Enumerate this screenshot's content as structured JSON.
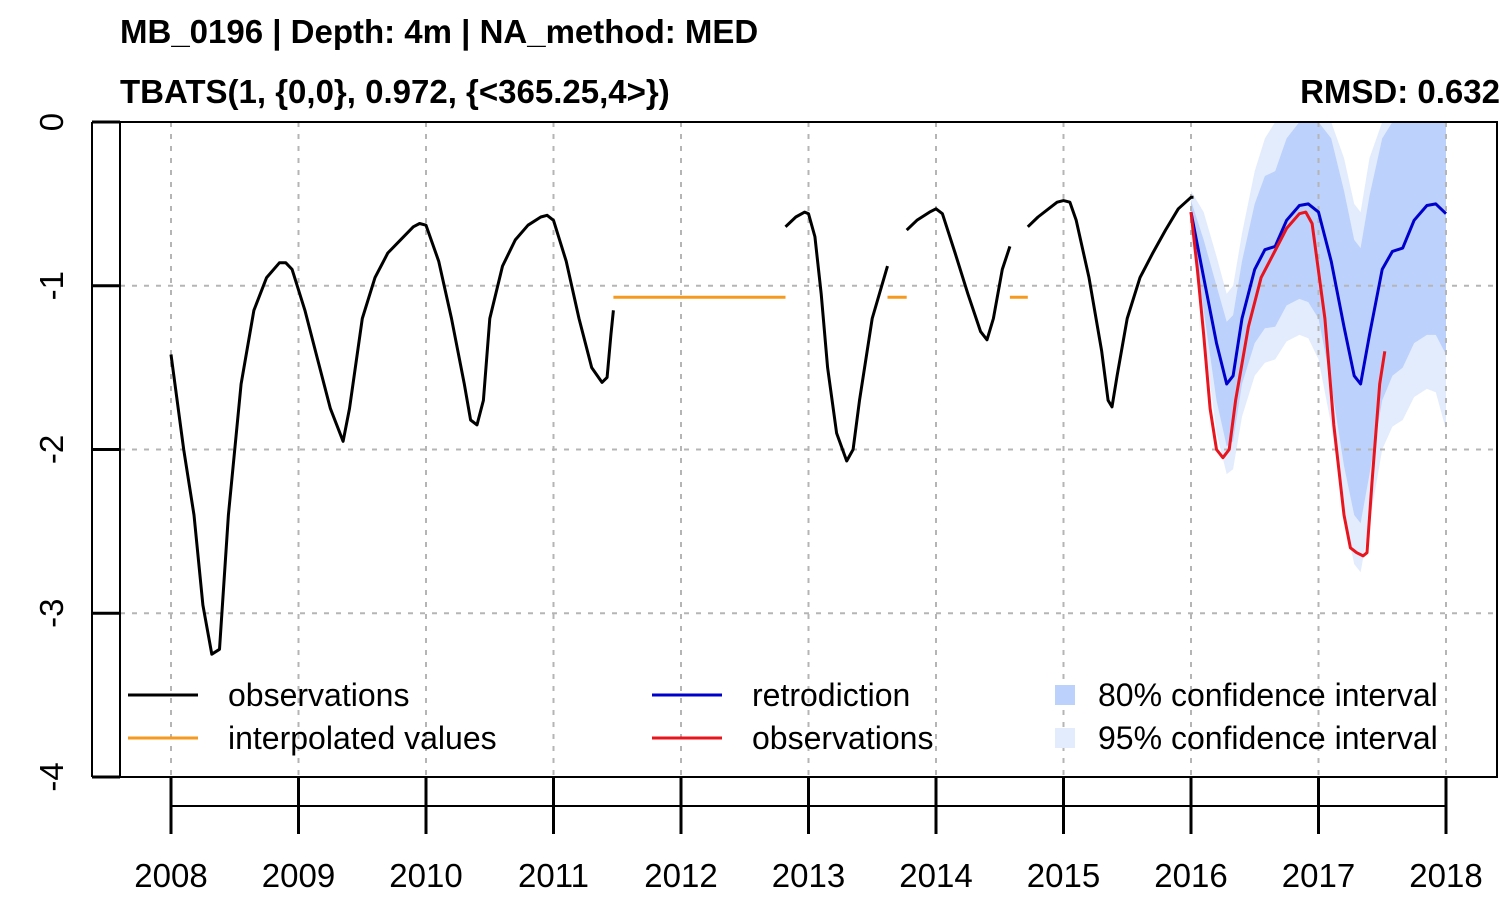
{
  "chart_data": {
    "type": "line",
    "title": "MB_0196 | Depth: 4m | NA_method: MED",
    "subtitle": "TBATS(1, {0,0}, 0.972, {<365.25,4>})",
    "rmsd_label": "RMSD: 0.632",
    "xlabel": "",
    "ylabel": "",
    "xlim": [
      2007.6,
      2018.4
    ],
    "ylim": [
      -4.0,
      0.0
    ],
    "grid": true,
    "x_ticks": [
      2008,
      2009,
      2010,
      2011,
      2012,
      2013,
      2014,
      2015,
      2016,
      2017,
      2018
    ],
    "x_tick_labels": [
      "2008",
      "2009",
      "2010",
      "2011",
      "2012",
      "2013",
      "2014",
      "2015",
      "2016",
      "2017",
      "2018"
    ],
    "y_ticks": [
      0,
      -1,
      -2,
      -3,
      -4
    ],
    "y_tick_labels": [
      "0",
      "-1",
      "-2",
      "-3",
      "-4"
    ],
    "colors": {
      "observations": "#000000",
      "interpolated": "#f59a1f",
      "retrodiction": "#0000cc",
      "observations_test": "#e8141e",
      "ci80": "#bcd1fb",
      "ci95": "#e3ecfd",
      "grid": "#b5b5b5"
    },
    "legend": {
      "placement": "bottom",
      "items": [
        {
          "label": "observations",
          "kind": "line",
          "color": "#000000"
        },
        {
          "label": "interpolated values",
          "kind": "line",
          "color": "#f59a1f"
        },
        {
          "label": "retrodiction",
          "kind": "line",
          "color": "#0000cc"
        },
        {
          "label": "observations",
          "kind": "line",
          "color": "#e8141e"
        },
        {
          "label": "80% confidence interval",
          "kind": "box",
          "color": "#bcd1fb"
        },
        {
          "label": "95% confidence interval",
          "kind": "box",
          "color": "#e3ecfd"
        }
      ]
    },
    "series": [
      {
        "name": "observations",
        "color": "#000000",
        "segments": [
          [
            [
              2008.0,
              -1.42
            ],
            [
              2008.1,
              -2.0
            ],
            [
              2008.18,
              -2.4
            ],
            [
              2008.25,
              -2.95
            ],
            [
              2008.32,
              -3.25
            ],
            [
              2008.38,
              -3.22
            ],
            [
              2008.45,
              -2.4
            ],
            [
              2008.55,
              -1.6
            ],
            [
              2008.65,
              -1.15
            ],
            [
              2008.75,
              -0.95
            ],
            [
              2008.85,
              -0.86
            ],
            [
              2008.9,
              -0.86
            ],
            [
              2008.95,
              -0.9
            ],
            [
              2009.05,
              -1.15
            ],
            [
              2009.15,
              -1.45
            ],
            [
              2009.25,
              -1.75
            ],
            [
              2009.35,
              -1.95
            ],
            [
              2009.4,
              -1.75
            ],
            [
              2009.5,
              -1.2
            ],
            [
              2009.6,
              -0.95
            ],
            [
              2009.7,
              -0.8
            ],
            [
              2009.8,
              -0.72
            ],
            [
              2009.9,
              -0.64
            ],
            [
              2009.95,
              -0.62
            ],
            [
              2010.0,
              -0.63
            ],
            [
              2010.1,
              -0.85
            ],
            [
              2010.2,
              -1.2
            ],
            [
              2010.3,
              -1.6
            ],
            [
              2010.35,
              -1.82
            ],
            [
              2010.4,
              -1.85
            ],
            [
              2010.45,
              -1.7
            ],
            [
              2010.5,
              -1.2
            ],
            [
              2010.6,
              -0.88
            ],
            [
              2010.7,
              -0.72
            ],
            [
              2010.8,
              -0.63
            ],
            [
              2010.9,
              -0.58
            ],
            [
              2010.95,
              -0.57
            ],
            [
              2011.0,
              -0.6
            ],
            [
              2011.1,
              -0.85
            ],
            [
              2011.2,
              -1.2
            ],
            [
              2011.3,
              -1.5
            ],
            [
              2011.38,
              -1.59
            ],
            [
              2011.42,
              -1.56
            ],
            [
              2011.45,
              -1.3
            ],
            [
              2011.47,
              -1.15
            ]
          ],
          [
            [
              2012.82,
              -0.64
            ],
            [
              2012.9,
              -0.58
            ],
            [
              2012.97,
              -0.55
            ],
            [
              2013.0,
              -0.56
            ],
            [
              2013.05,
              -0.7
            ],
            [
              2013.1,
              -1.05
            ],
            [
              2013.15,
              -1.5
            ],
            [
              2013.22,
              -1.9
            ],
            [
              2013.3,
              -2.07
            ],
            [
              2013.35,
              -2.0
            ],
            [
              2013.4,
              -1.7
            ],
            [
              2013.5,
              -1.2
            ],
            [
              2013.62,
              -0.88
            ]
          ],
          [
            [
              2013.77,
              -0.66
            ],
            [
              2013.85,
              -0.6
            ],
            [
              2013.95,
              -0.55
            ],
            [
              2014.0,
              -0.53
            ],
            [
              2014.05,
              -0.56
            ],
            [
              2014.15,
              -0.8
            ],
            [
              2014.25,
              -1.05
            ],
            [
              2014.35,
              -1.28
            ],
            [
              2014.4,
              -1.33
            ],
            [
              2014.45,
              -1.2
            ],
            [
              2014.52,
              -0.9
            ],
            [
              2014.58,
              -0.76
            ]
          ],
          [
            [
              2014.72,
              -0.64
            ],
            [
              2014.8,
              -0.58
            ],
            [
              2014.9,
              -0.52
            ],
            [
              2014.95,
              -0.49
            ],
            [
              2015.0,
              -0.48
            ],
            [
              2015.05,
              -0.49
            ],
            [
              2015.1,
              -0.6
            ],
            [
              2015.2,
              -0.95
            ],
            [
              2015.3,
              -1.4
            ],
            [
              2015.35,
              -1.7
            ],
            [
              2015.38,
              -1.74
            ],
            [
              2015.42,
              -1.55
            ],
            [
              2015.5,
              -1.2
            ],
            [
              2015.6,
              -0.95
            ],
            [
              2015.7,
              -0.8
            ],
            [
              2015.8,
              -0.66
            ],
            [
              2015.9,
              -0.53
            ],
            [
              2016.0,
              -0.46
            ],
            [
              2016.02,
              -0.46
            ]
          ]
        ]
      },
      {
        "name": "interpolated values",
        "color": "#f59a1f",
        "segments": [
          [
            [
              2011.47,
              -1.07
            ],
            [
              2012.82,
              -1.07
            ]
          ],
          [
            [
              2013.62,
              -1.07
            ],
            [
              2013.77,
              -1.07
            ]
          ],
          [
            [
              2014.58,
              -1.07
            ],
            [
              2014.72,
              -1.07
            ]
          ]
        ]
      },
      {
        "name": "retrodiction",
        "color": "#0000cc",
        "segments": [
          [
            [
              2016.0,
              -0.55
            ],
            [
              2016.1,
              -0.95
            ],
            [
              2016.2,
              -1.35
            ],
            [
              2016.28,
              -1.6
            ],
            [
              2016.33,
              -1.55
            ],
            [
              2016.4,
              -1.2
            ],
            [
              2016.5,
              -0.9
            ],
            [
              2016.58,
              -0.78
            ],
            [
              2016.66,
              -0.76
            ],
            [
              2016.75,
              -0.6
            ],
            [
              2016.85,
              -0.51
            ],
            [
              2016.92,
              -0.5
            ],
            [
              2017.0,
              -0.55
            ],
            [
              2017.1,
              -0.85
            ],
            [
              2017.2,
              -1.25
            ],
            [
              2017.28,
              -1.55
            ],
            [
              2017.33,
              -1.6
            ],
            [
              2017.4,
              -1.3
            ],
            [
              2017.5,
              -0.9
            ],
            [
              2017.58,
              -0.79
            ],
            [
              2017.66,
              -0.77
            ],
            [
              2017.75,
              -0.6
            ],
            [
              2017.85,
              -0.51
            ],
            [
              2017.92,
              -0.5
            ],
            [
              2018.0,
              -0.56
            ]
          ]
        ]
      },
      {
        "name": "observations (test)",
        "color": "#e8141e",
        "segments": [
          [
            [
              2016.0,
              -0.55
            ],
            [
              2016.05,
              -0.9
            ],
            [
              2016.1,
              -1.3
            ],
            [
              2016.15,
              -1.75
            ],
            [
              2016.2,
              -2.0
            ],
            [
              2016.25,
              -2.05
            ],
            [
              2016.3,
              -2.0
            ],
            [
              2016.35,
              -1.7
            ],
            [
              2016.45,
              -1.25
            ],
            [
              2016.55,
              -0.95
            ],
            [
              2016.65,
              -0.8
            ],
            [
              2016.75,
              -0.65
            ],
            [
              2016.85,
              -0.56
            ],
            [
              2016.9,
              -0.55
            ],
            [
              2016.95,
              -0.62
            ],
            [
              2017.05,
              -1.2
            ],
            [
              2017.12,
              -1.85
            ],
            [
              2017.2,
              -2.4
            ],
            [
              2017.25,
              -2.6
            ],
            [
              2017.3,
              -2.63
            ],
            [
              2017.35,
              -2.65
            ],
            [
              2017.38,
              -2.63
            ],
            [
              2017.42,
              -2.2
            ],
            [
              2017.48,
              -1.6
            ],
            [
              2017.52,
              -1.4
            ]
          ]
        ]
      }
    ],
    "ci80": {
      "x": [
        2016.0,
        2016.1,
        2016.2,
        2016.28,
        2016.33,
        2016.4,
        2016.5,
        2016.58,
        2016.66,
        2016.75,
        2016.85,
        2016.92,
        2017.0,
        2017.1,
        2017.2,
        2017.28,
        2017.33,
        2017.4,
        2017.5,
        2017.58,
        2017.66,
        2017.75,
        2017.85,
        2017.92,
        2018.0
      ],
      "lower": [
        -0.62,
        -1.15,
        -1.7,
        -1.98,
        -1.95,
        -1.6,
        -1.35,
        -1.26,
        -1.25,
        -1.12,
        -1.08,
        -1.1,
        -1.2,
        -1.6,
        -2.1,
        -2.4,
        -2.45,
        -2.15,
        -1.7,
        -1.55,
        -1.5,
        -1.35,
        -1.3,
        -1.3,
        -1.42
      ],
      "upper": [
        -0.48,
        -0.72,
        -1.0,
        -1.22,
        -1.18,
        -0.85,
        -0.5,
        -0.33,
        -0.3,
        -0.1,
        0.0,
        0.0,
        0.0,
        -0.1,
        -0.42,
        -0.72,
        -0.77,
        -0.45,
        -0.1,
        0.0,
        0.0,
        0.0,
        0.0,
        0.0,
        0.0
      ]
    },
    "ci95": {
      "x": [
        2016.0,
        2016.1,
        2016.2,
        2016.28,
        2016.33,
        2016.4,
        2016.5,
        2016.58,
        2016.66,
        2016.75,
        2016.85,
        2016.92,
        2017.0,
        2017.1,
        2017.2,
        2017.28,
        2017.33,
        2017.4,
        2017.5,
        2017.58,
        2017.66,
        2017.75,
        2017.85,
        2017.92,
        2018.0
      ],
      "lower": [
        -0.68,
        -1.3,
        -1.9,
        -2.15,
        -2.12,
        -1.8,
        -1.55,
        -1.47,
        -1.45,
        -1.34,
        -1.3,
        -1.32,
        -1.45,
        -1.85,
        -2.4,
        -2.7,
        -2.75,
        -2.45,
        -2.0,
        -1.86,
        -1.82,
        -1.68,
        -1.63,
        -1.65,
        -1.88
      ],
      "upper": [
        -0.42,
        -0.55,
        -0.82,
        -1.05,
        -1.0,
        -0.68,
        -0.3,
        -0.1,
        0.0,
        0.0,
        0.0,
        0.0,
        0.0,
        0.0,
        -0.22,
        -0.5,
        -0.55,
        -0.22,
        0.0,
        0.0,
        0.0,
        0.0,
        0.0,
        0.0,
        0.0
      ]
    }
  }
}
